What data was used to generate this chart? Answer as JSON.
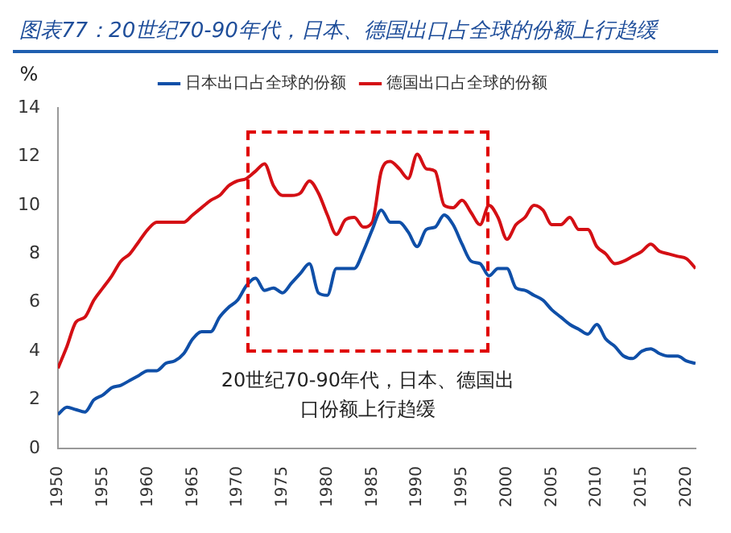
{
  "chart_data": {
    "type": "line",
    "title": "图表77：20世纪70-90年代，日本、德国出口占全球的份额上行趋缓",
    "ylabel": "%",
    "x": [
      1950,
      1951,
      1952,
      1953,
      1954,
      1955,
      1956,
      1957,
      1958,
      1959,
      1960,
      1961,
      1962,
      1963,
      1964,
      1965,
      1966,
      1967,
      1968,
      1969,
      1970,
      1971,
      1972,
      1973,
      1974,
      1975,
      1976,
      1977,
      1978,
      1979,
      1980,
      1981,
      1982,
      1983,
      1984,
      1985,
      1986,
      1987,
      1988,
      1989,
      1990,
      1991,
      1992,
      1993,
      1994,
      1995,
      1996,
      1997,
      1998,
      1999,
      2000,
      2001,
      2002,
      2003,
      2004,
      2005,
      2006,
      2007,
      2008,
      2009,
      2010,
      2011,
      2012,
      2013,
      2014,
      2015,
      2016,
      2017,
      2018,
      2019,
      2020,
      2021
    ],
    "series": [
      {
        "name": "日本出口占全球的份额",
        "color": "#0f4fa8",
        "values": [
          1.4,
          1.7,
          1.6,
          1.5,
          2.0,
          2.2,
          2.5,
          2.6,
          2.8,
          3.0,
          3.2,
          3.2,
          3.5,
          3.6,
          3.9,
          4.5,
          4.8,
          4.8,
          5.4,
          5.8,
          6.1,
          6.7,
          7.0,
          6.5,
          6.6,
          6.4,
          6.8,
          7.2,
          7.6,
          6.4,
          6.3,
          7.4,
          7.4,
          7.4,
          8.1,
          9.0,
          9.8,
          9.3,
          9.3,
          8.9,
          8.3,
          9.0,
          9.1,
          9.6,
          9.2,
          8.4,
          7.7,
          7.6,
          7.1,
          7.4,
          7.4,
          6.6,
          6.5,
          6.3,
          6.1,
          5.7,
          5.4,
          5.1,
          4.9,
          4.7,
          5.1,
          4.5,
          4.2,
          3.8,
          3.7,
          4.0,
          4.1,
          3.9,
          3.8,
          3.8,
          3.6,
          3.5
        ]
      },
      {
        "name": "德国出口占全球的份额",
        "color": "#d40f14",
        "values": [
          3.3,
          4.2,
          5.2,
          5.4,
          6.1,
          6.6,
          7.1,
          7.7,
          8.0,
          8.5,
          9.0,
          9.3,
          9.3,
          9.3,
          9.3,
          9.6,
          9.9,
          10.2,
          10.4,
          10.8,
          11.0,
          11.1,
          11.4,
          11.7,
          10.8,
          10.4,
          10.4,
          10.5,
          11.0,
          10.5,
          9.6,
          8.8,
          9.4,
          9.5,
          9.1,
          9.3,
          11.4,
          11.8,
          11.5,
          11.1,
          12.1,
          11.5,
          11.4,
          10.0,
          9.9,
          10.2,
          9.7,
          9.2,
          10.0,
          9.5,
          8.6,
          9.2,
          9.5,
          10.0,
          9.8,
          9.2,
          9.2,
          9.5,
          9.0,
          9.0,
          8.3,
          8.0,
          7.6,
          7.7,
          7.9,
          8.1,
          8.4,
          8.1,
          8.0,
          7.9,
          7.8,
          7.4
        ]
      }
    ],
    "xlim": [
      1950,
      2021
    ],
    "xticks": [
      1950,
      1955,
      1960,
      1965,
      1970,
      1975,
      1980,
      1985,
      1990,
      1995,
      2000,
      2005,
      2010,
      2015,
      2020
    ],
    "ylim": [
      0,
      14
    ],
    "yticks": [
      0,
      2,
      4,
      6,
      8,
      10,
      12,
      14
    ],
    "annotations": [
      "20世纪70-90年代，日本、德国出口份额上行趋缓"
    ],
    "legend": "top",
    "grid": false,
    "marker": "none",
    "line_style": "solid"
  }
}
